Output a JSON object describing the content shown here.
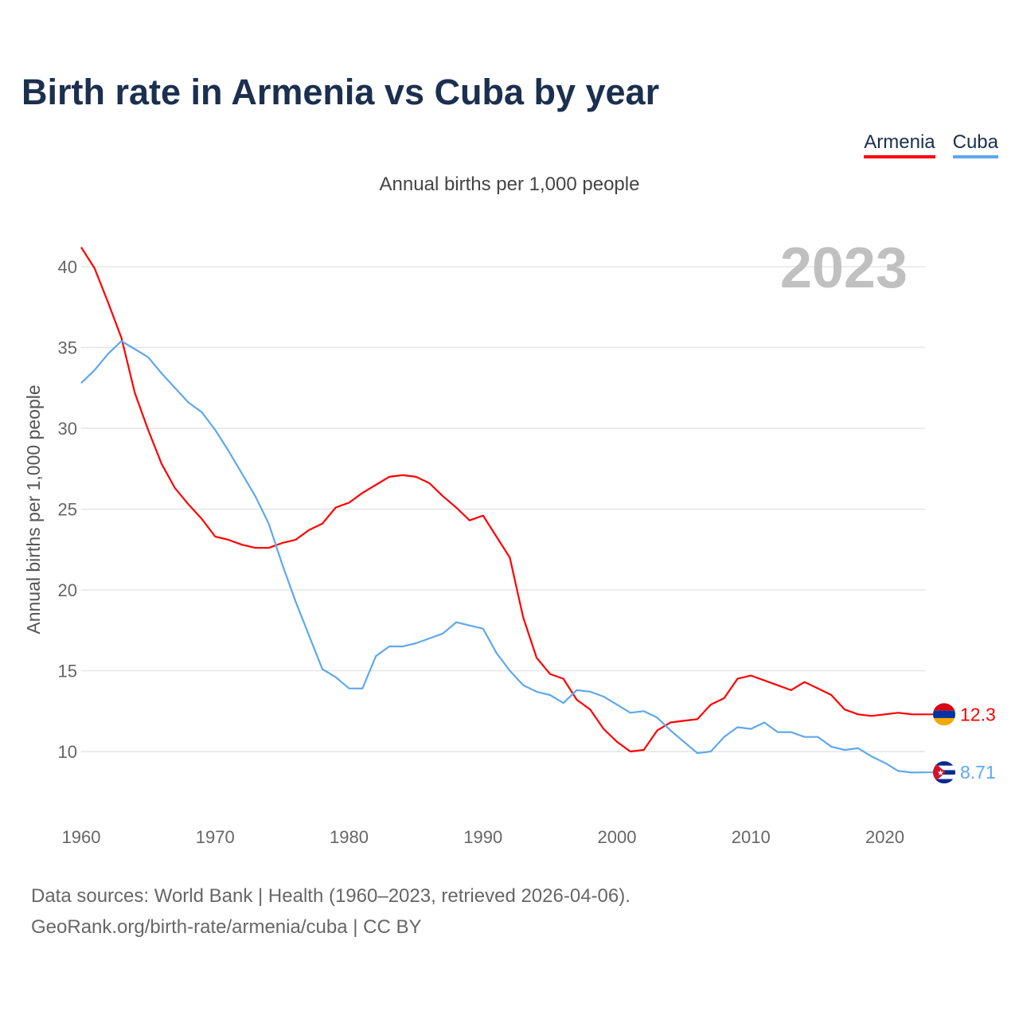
{
  "title": "Birth rate in Armenia vs Cuba by year",
  "legend": [
    {
      "label": "Armenia",
      "color": "#ff0000"
    },
    {
      "label": "Cuba",
      "color": "#5fa8ee"
    }
  ],
  "subtitle": "Annual births per 1,000 people",
  "footer": {
    "line1": "Data sources: World Bank | Health (1960–2023, retrieved 2026-04-06).",
    "line2": "GeoRank.org/birth-rate/armenia/cuba | CC BY"
  },
  "chart_data": {
    "type": "line",
    "title": "Birth rate in Armenia vs Cuba by year",
    "xlabel": "",
    "ylabel": "Annual births per 1,000 people",
    "year_label": "2023",
    "xlim": [
      1960,
      2023
    ],
    "ylim": [
      6.5,
      43
    ],
    "x_ticks": [
      1960,
      1970,
      1980,
      1990,
      2000,
      2010,
      2020
    ],
    "y_ticks": [
      10,
      15,
      20,
      25,
      30,
      35,
      40
    ],
    "grid": true,
    "x": [
      1960,
      1961,
      1962,
      1963,
      1964,
      1965,
      1966,
      1967,
      1968,
      1969,
      1970,
      1971,
      1972,
      1973,
      1974,
      1975,
      1976,
      1977,
      1978,
      1979,
      1980,
      1981,
      1982,
      1983,
      1984,
      1985,
      1986,
      1987,
      1988,
      1989,
      1990,
      1991,
      1992,
      1993,
      1994,
      1995,
      1996,
      1997,
      1998,
      1999,
      2000,
      2001,
      2002,
      2003,
      2004,
      2005,
      2006,
      2007,
      2008,
      2009,
      2010,
      2011,
      2012,
      2013,
      2014,
      2015,
      2016,
      2017,
      2018,
      2019,
      2020,
      2021,
      2022,
      2023
    ],
    "series": [
      {
        "name": "Armenia",
        "color": "#ff0000",
        "end_label": "12.3",
        "values": [
          41.2,
          39.9,
          37.8,
          35.6,
          32.2,
          29.9,
          27.8,
          26.3,
          25.3,
          24.4,
          23.3,
          23.1,
          22.8,
          22.6,
          22.6,
          22.9,
          23.1,
          23.7,
          24.1,
          25.1,
          25.4,
          26.0,
          26.5,
          27.0,
          27.1,
          27.0,
          26.6,
          25.8,
          25.1,
          24.3,
          24.6,
          23.3,
          22.0,
          18.3,
          15.8,
          14.8,
          14.5,
          13.2,
          12.6,
          11.4,
          10.6,
          10.0,
          10.1,
          11.3,
          11.8,
          11.9,
          12.0,
          12.9,
          13.3,
          14.5,
          14.7,
          14.4,
          14.1,
          13.8,
          14.3,
          13.9,
          13.5,
          12.6,
          12.3,
          12.2,
          12.3,
          12.4,
          12.3,
          12.3
        ]
      },
      {
        "name": "Cuba",
        "color": "#5fa8ee",
        "end_label": "8.71",
        "values": [
          32.8,
          33.6,
          34.6,
          35.4,
          34.9,
          34.4,
          33.4,
          32.5,
          31.6,
          31.0,
          29.9,
          28.6,
          27.2,
          25.8,
          24.1,
          21.6,
          19.3,
          17.2,
          15.1,
          14.6,
          13.9,
          13.9,
          15.9,
          16.5,
          16.5,
          16.7,
          17.0,
          17.3,
          18.0,
          17.8,
          17.6,
          16.1,
          15.0,
          14.1,
          13.7,
          13.5,
          13.0,
          13.8,
          13.7,
          13.4,
          12.9,
          12.4,
          12.5,
          12.1,
          11.3,
          10.6,
          9.9,
          10.0,
          10.9,
          11.5,
          11.4,
          11.8,
          11.2,
          11.2,
          10.9,
          10.9,
          10.3,
          10.1,
          10.2,
          9.7,
          9.3,
          8.8,
          8.7,
          8.71
        ]
      }
    ]
  }
}
